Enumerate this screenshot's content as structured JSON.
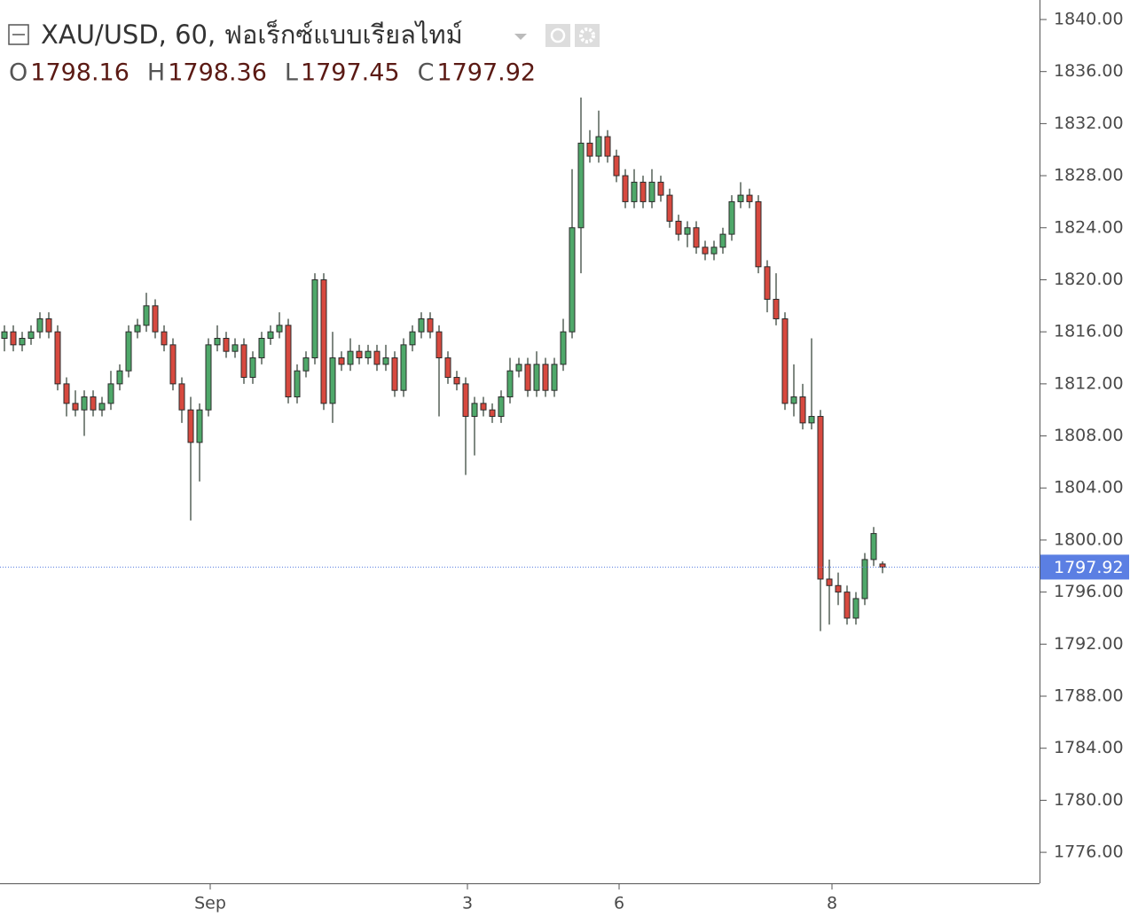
{
  "chart_data": {
    "type": "candlestick",
    "title": "XAU/USD, 60, ฟอเร็กซ์แบบเรียลไทม์",
    "ohlc_labels": [
      "O",
      "H",
      "L",
      "C"
    ],
    "ohlc": [
      [
        1815.5,
        1816.5,
        1814.5,
        1816
      ],
      [
        1816,
        1816.5,
        1814.5,
        1815
      ],
      [
        1815,
        1816,
        1814.5,
        1815.5
      ],
      [
        1815.5,
        1816.5,
        1815,
        1816
      ],
      [
        1816,
        1817.5,
        1815.5,
        1817
      ],
      [
        1817,
        1817.5,
        1815.5,
        1816
      ],
      [
        1816,
        1816.5,
        1811.5,
        1812
      ],
      [
        1812,
        1812.5,
        1809.5,
        1810.5
      ],
      [
        1810.5,
        1811.5,
        1809.5,
        1810
      ],
      [
        1810,
        1811.5,
        1808,
        1811
      ],
      [
        1811,
        1811.5,
        1809.5,
        1810
      ],
      [
        1810,
        1811,
        1809.5,
        1810.5
      ],
      [
        1810.5,
        1813,
        1810,
        1812
      ],
      [
        1812,
        1813.5,
        1811.5,
        1813
      ],
      [
        1813,
        1816.5,
        1812.5,
        1816
      ],
      [
        1816,
        1817,
        1815.5,
        1816.5
      ],
      [
        1816.5,
        1819,
        1816,
        1818
      ],
      [
        1818,
        1818.5,
        1815.5,
        1816
      ],
      [
        1816,
        1816.5,
        1814.5,
        1815
      ],
      [
        1815,
        1815.5,
        1811.5,
        1812
      ],
      [
        1812,
        1812.5,
        1809,
        1810
      ],
      [
        1810,
        1811,
        1801.5,
        1807.5
      ],
      [
        1807.5,
        1810.5,
        1804.5,
        1810
      ],
      [
        1810,
        1815.5,
        1809.5,
        1815
      ],
      [
        1815,
        1816.5,
        1814.5,
        1815.5
      ],
      [
        1815.5,
        1816,
        1814,
        1814.5
      ],
      [
        1814.5,
        1815.5,
        1814,
        1815
      ],
      [
        1815,
        1815.5,
        1812,
        1812.5
      ],
      [
        1812.5,
        1814.5,
        1812,
        1814
      ],
      [
        1814,
        1816,
        1813.5,
        1815.5
      ],
      [
        1815.5,
        1816.5,
        1815,
        1816
      ],
      [
        1816,
        1817.5,
        1815.5,
        1816.5
      ],
      [
        1816.5,
        1817,
        1810.5,
        1811
      ],
      [
        1811,
        1813.5,
        1810.5,
        1813
      ],
      [
        1813,
        1814.5,
        1812.5,
        1814
      ],
      [
        1814,
        1820.5,
        1813.5,
        1820
      ],
      [
        1820,
        1820.5,
        1810,
        1810.5
      ],
      [
        1810.5,
        1816,
        1809,
        1814
      ],
      [
        1814,
        1814.5,
        1813,
        1813.5
      ],
      [
        1813.5,
        1815.5,
        1813,
        1814.5
      ],
      [
        1814.5,
        1815,
        1813.5,
        1814
      ],
      [
        1814,
        1815,
        1813.5,
        1814.5
      ],
      [
        1814.5,
        1815,
        1813,
        1813.5
      ],
      [
        1813.5,
        1815,
        1813,
        1814
      ],
      [
        1814,
        1814.5,
        1811,
        1811.5
      ],
      [
        1811.5,
        1815.5,
        1811,
        1815
      ],
      [
        1815,
        1816.5,
        1814.5,
        1816
      ],
      [
        1816,
        1817.5,
        1815.5,
        1817
      ],
      [
        1817,
        1817.5,
        1815.5,
        1816
      ],
      [
        1816,
        1816.5,
        1809.5,
        1814
      ],
      [
        1814,
        1814.5,
        1812,
        1812.5
      ],
      [
        1812.5,
        1813,
        1811.5,
        1812
      ],
      [
        1812,
        1812.5,
        1805,
        1809.5
      ],
      [
        1809.5,
        1811,
        1806.5,
        1810.5
      ],
      [
        1810.5,
        1811,
        1809.5,
        1810
      ],
      [
        1810,
        1810.5,
        1809,
        1809.5
      ],
      [
        1809.5,
        1811.5,
        1809,
        1811
      ],
      [
        1811,
        1814,
        1810.5,
        1813
      ],
      [
        1813,
        1814,
        1812.5,
        1813.5
      ],
      [
        1813.5,
        1814,
        1811,
        1811.5
      ],
      [
        1811.5,
        1814.5,
        1811,
        1813.5
      ],
      [
        1813.5,
        1814,
        1811,
        1811.5
      ],
      [
        1811.5,
        1814,
        1811,
        1813.5
      ],
      [
        1813.5,
        1817,
        1813,
        1816
      ],
      [
        1816,
        1828.5,
        1815.5,
        1824
      ],
      [
        1824,
        1834,
        1820.5,
        1830.5
      ],
      [
        1830.5,
        1831.5,
        1829,
        1829.5
      ],
      [
        1829.5,
        1833,
        1829,
        1831
      ],
      [
        1831,
        1831.5,
        1829,
        1829.5
      ],
      [
        1829.5,
        1830,
        1827.5,
        1828
      ],
      [
        1828,
        1828.5,
        1825.5,
        1826
      ],
      [
        1826,
        1828.5,
        1825.5,
        1827.5
      ],
      [
        1827.5,
        1828,
        1825.5,
        1826
      ],
      [
        1826,
        1828.5,
        1825.5,
        1827.5
      ],
      [
        1827.5,
        1828,
        1826,
        1826.5
      ],
      [
        1826.5,
        1827,
        1824,
        1824.5
      ],
      [
        1824.5,
        1825,
        1823,
        1823.5
      ],
      [
        1823.5,
        1824.5,
        1822.5,
        1824
      ],
      [
        1824,
        1824.5,
        1822,
        1822.5
      ],
      [
        1822.5,
        1823,
        1821.5,
        1822
      ],
      [
        1822,
        1823,
        1821.5,
        1822.5
      ],
      [
        1822.5,
        1824,
        1822,
        1823.5
      ],
      [
        1823.5,
        1826.5,
        1823,
        1826
      ],
      [
        1826,
        1827.5,
        1825.5,
        1826.5
      ],
      [
        1826.5,
        1827,
        1825.5,
        1826
      ],
      [
        1826,
        1826.5,
        1820.5,
        1821
      ],
      [
        1821,
        1821.5,
        1817.5,
        1818.5
      ],
      [
        1818.5,
        1820.5,
        1816.5,
        1817
      ],
      [
        1817,
        1817.5,
        1810,
        1810.5
      ],
      [
        1810.5,
        1813.5,
        1809.5,
        1811
      ],
      [
        1811,
        1812,
        1808.5,
        1809
      ],
      [
        1809,
        1815.5,
        1808.5,
        1809.5
      ],
      [
        1809.5,
        1810,
        1793,
        1797
      ],
      [
        1797,
        1798.5,
        1793.5,
        1796.5
      ],
      [
        1796.5,
        1797.5,
        1795,
        1796
      ],
      [
        1796,
        1796.5,
        1793.5,
        1794
      ],
      [
        1794,
        1796,
        1793.5,
        1795.5
      ],
      [
        1795.5,
        1799,
        1795,
        1798.5
      ],
      [
        1798.5,
        1801,
        1798,
        1800.5
      ],
      [
        1798.16,
        1798.36,
        1797.45,
        1797.92
      ]
    ],
    "up_color": "#4fa86a",
    "down_color": "#d7493f",
    "xlim": [
      -0.5,
      116.7
    ],
    "xticks": [
      {
        "value": 23.2,
        "label": "Sep"
      },
      {
        "value": 52.2,
        "label": "3"
      },
      {
        "value": 69.3,
        "label": "6"
      },
      {
        "value": 93.3,
        "label": "8"
      }
    ],
    "ylim": [
      1773.62,
      1841.5
    ],
    "yticks": [
      {
        "value": 1776,
        "label": "1776.00"
      },
      {
        "value": 1780,
        "label": "1780.00"
      },
      {
        "value": 1784,
        "label": "1784.00"
      },
      {
        "value": 1788,
        "label": "1788.00"
      },
      {
        "value": 1792,
        "label": "1792.00"
      },
      {
        "value": 1796,
        "label": "1796.00"
      },
      {
        "value": 1800,
        "label": "1800.00"
      },
      {
        "value": 1804,
        "label": "1804.00"
      },
      {
        "value": 1808,
        "label": "1808.00"
      },
      {
        "value": 1812,
        "label": "1812.00"
      },
      {
        "value": 1816,
        "label": "1816.00"
      },
      {
        "value": 1820,
        "label": "1820.00"
      },
      {
        "value": 1824,
        "label": "1824.00"
      },
      {
        "value": 1828,
        "label": "1828.00"
      },
      {
        "value": 1832,
        "label": "1832.00"
      },
      {
        "value": 1836,
        "label": "1836.00"
      },
      {
        "value": 1840,
        "label": "1840.00"
      }
    ]
  }
}
